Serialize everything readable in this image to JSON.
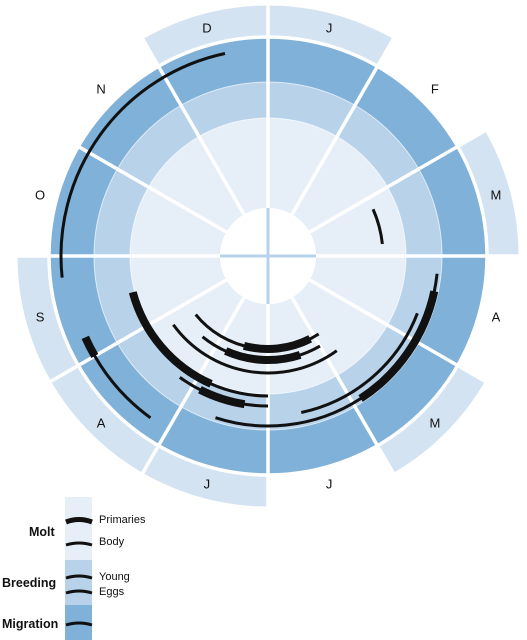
{
  "months": [
    "J",
    "F",
    "M",
    "A",
    "M",
    "J",
    "J",
    "A",
    "S",
    "O",
    "N",
    "D"
  ],
  "colors": {
    "migration": "#7fb1d9",
    "breeding": "#b8d2ea",
    "molt": "#e6eff8",
    "outer": "#d3e3f2",
    "stroke": "#ffffff",
    "bar": "#111111"
  },
  "arcs": [
    {
      "name": "arc-1",
      "start_month": 8.1,
      "end_month": 7.2,
      "thick_start": 8.2,
      "thick_end": 8.0
    },
    {
      "name": "arc-2",
      "start_month": 8.8,
      "end_month": 11.6
    },
    {
      "name": "arc-3",
      "start_month": 6.6,
      "end_month": 3.2,
      "thick_start": 4.9,
      "thick_end": 3.4
    },
    {
      "name": "arc-4",
      "start_month": 5.6,
      "end_month": 3.7
    },
    {
      "name": "arc-5",
      "start_month": 4.8,
      "end_month": 7.8
    },
    {
      "name": "arc-6",
      "start_month": 4.9,
      "end_month": 7.7,
      "thick_start": 5.1,
      "thick_end": 6.5
    },
    {
      "name": "arc-7",
      "start_month": 5.0,
      "end_month": 7.3,
      "thick_start": 5.4,
      "thick_end": 6.8
    },
    {
      "name": "arc-8",
      "start_month": 6.0,
      "end_month": 8.5,
      "thick_start": 6.8,
      "thick_end": 8.5
    },
    {
      "name": "arc-9",
      "start_month": 6.0,
      "end_month": 7.2,
      "thick_start": 6.3,
      "thick_end": 6.9
    },
    {
      "name": "arc-10",
      "start_month": 2.2,
      "end_month": 2.8
    }
  ],
  "legend": {
    "categories": {
      "molt": "Molt",
      "breeding": "Breeding",
      "migration": "Migration"
    },
    "items": {
      "primaries": "Primaries",
      "body": "Body",
      "young": "Young",
      "eggs": "Eggs"
    }
  }
}
